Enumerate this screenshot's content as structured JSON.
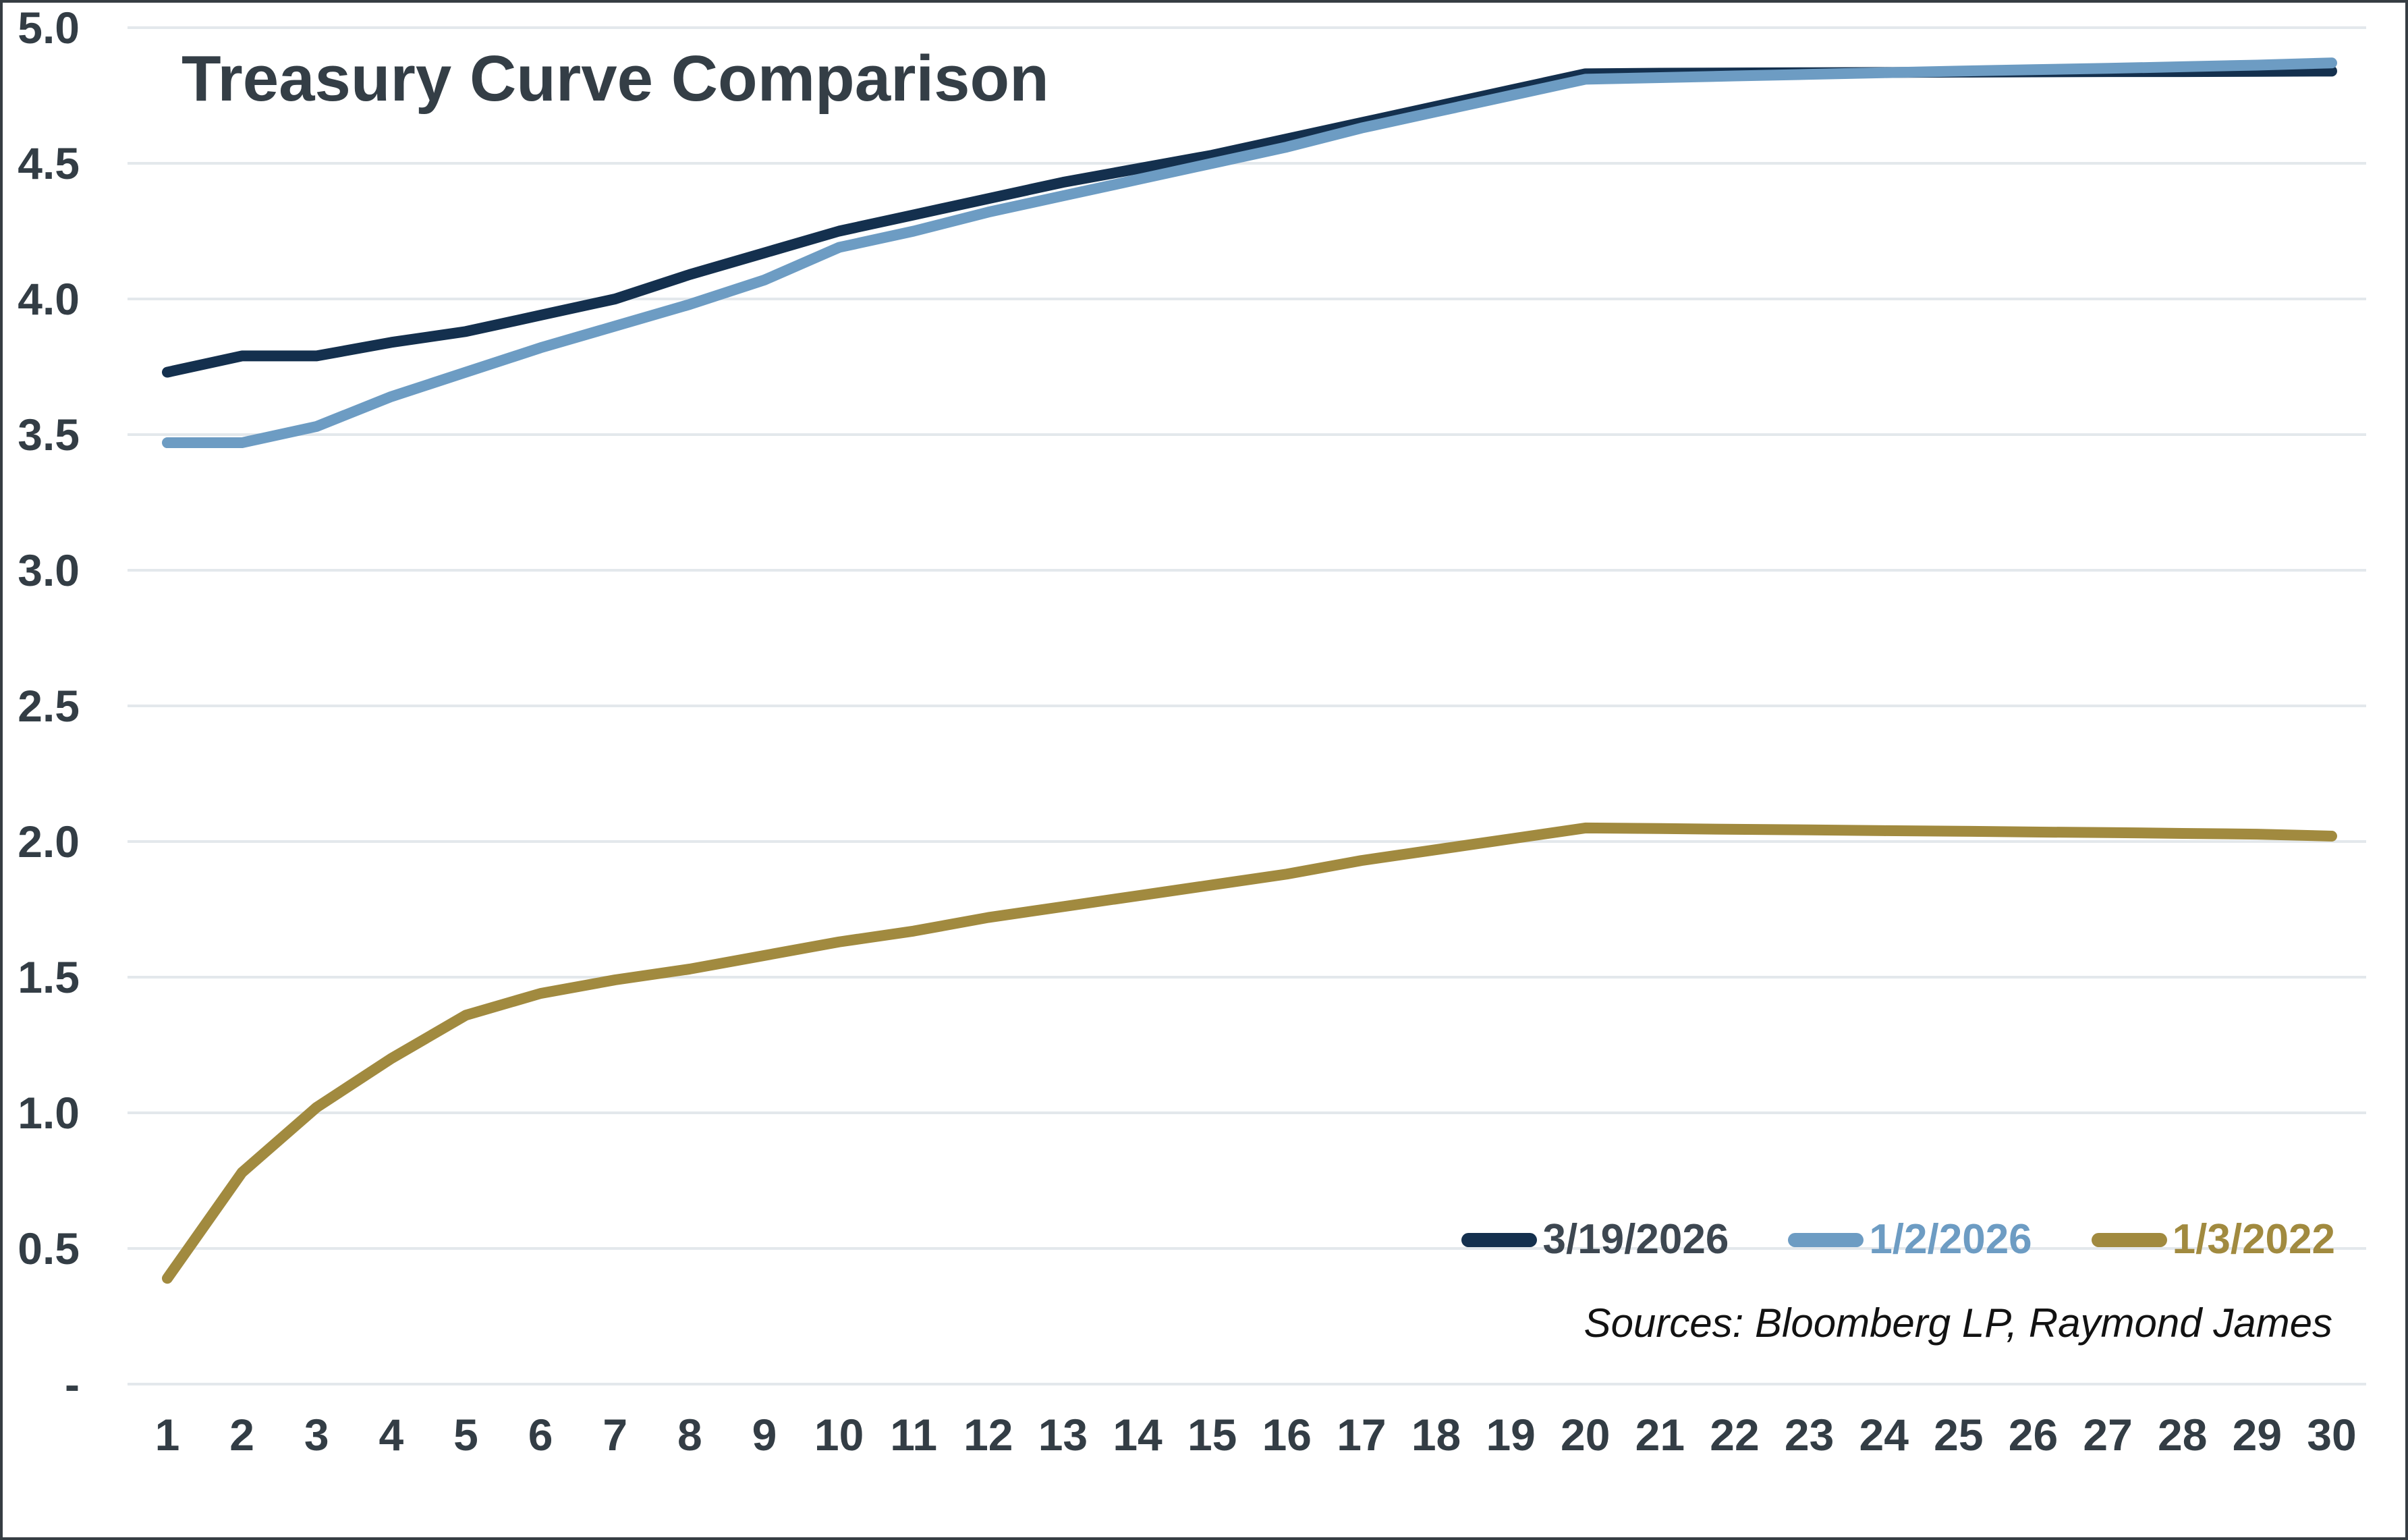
{
  "header": {
    "title": "Treasury Curve Comparison"
  },
  "footer": {
    "sources": "Sources: Bloomberg LP, Raymond James"
  },
  "legend": {
    "position": "bottom-right",
    "items": [
      {
        "label": "3/19/2026",
        "color": "#14304e",
        "label_color": "#3d4751"
      },
      {
        "label": "1/2/2026",
        "color": "#6d9cc3",
        "label_color": "#6d9cc3"
      },
      {
        "label": "1/3/2022",
        "color": "#a18a3f",
        "label_color": "#a18a3f"
      }
    ]
  },
  "colors": {
    "background": "#ffffff",
    "frame_border": "#363d43",
    "gridline": "#e3e8ec",
    "axis_text": "#333d45",
    "title_text": "#343e46",
    "sources_text": "#121212",
    "series_navy": "#14304e",
    "series_blue": "#6d9cc3",
    "series_gold": "#a18a3f"
  },
  "chart_data": {
    "type": "line",
    "title": "Treasury Curve Comparison",
    "xlabel": "",
    "ylabel": "",
    "x": [
      1,
      2,
      3,
      4,
      5,
      6,
      7,
      8,
      9,
      10,
      11,
      12,
      13,
      14,
      15,
      16,
      17,
      18,
      19,
      20,
      21,
      22,
      23,
      24,
      25,
      26,
      27,
      28,
      29,
      30
    ],
    "x_tick_labels": [
      "1",
      "2",
      "3",
      "4",
      "5",
      "6",
      "7",
      "8",
      "9",
      "10",
      "11",
      "12",
      "13",
      "14",
      "15",
      "16",
      "17",
      "18",
      "19",
      "20",
      "21",
      "22",
      "23",
      "24",
      "25",
      "26",
      "27",
      "28",
      "29",
      "30"
    ],
    "y_ticks": [
      {
        "label": "5.0",
        "value": 5.0
      },
      {
        "label": "4.5",
        "value": 4.5
      },
      {
        "label": "4.0",
        "value": 4.0
      },
      {
        "label": "3.5",
        "value": 3.5
      },
      {
        "label": "3.0",
        "value": 3.0
      },
      {
        "label": "2.5",
        "value": 2.5
      },
      {
        "label": "2.0",
        "value": 2.0
      },
      {
        "label": "1.5",
        "value": 1.5
      },
      {
        "label": "1.0",
        "value": 1.0
      },
      {
        "label": "0.5",
        "value": 0.5
      },
      {
        "label": "-",
        "value": 0.0
      }
    ],
    "ylim": [
      0,
      5.0
    ],
    "grid": "on",
    "legend_position": "bottom-right",
    "series": [
      {
        "name": "3/19/2026",
        "color": "#14304e",
        "values": [
          3.73,
          3.79,
          3.79,
          3.84,
          3.88,
          3.94,
          4.0,
          4.09,
          4.17,
          4.25,
          4.31,
          4.37,
          4.43,
          4.48,
          4.53,
          4.59,
          4.65,
          4.71,
          4.77,
          4.83,
          4.832,
          4.833,
          4.834,
          4.835,
          4.836,
          4.837,
          4.838,
          4.838,
          4.839,
          4.84
        ]
      },
      {
        "name": "1/2/2026",
        "color": "#6d9cc3",
        "values": [
          3.47,
          3.47,
          3.53,
          3.64,
          3.73,
          3.82,
          3.9,
          3.98,
          4.07,
          4.19,
          4.25,
          4.32,
          4.38,
          4.44,
          4.5,
          4.56,
          4.63,
          4.69,
          4.75,
          4.81,
          4.816,
          4.822,
          4.828,
          4.834,
          4.84,
          4.845,
          4.85,
          4.856,
          4.862,
          4.87
        ]
      },
      {
        "name": "1/3/2022",
        "color": "#a18a3f",
        "values": [
          0.39,
          0.78,
          1.02,
          1.2,
          1.36,
          1.44,
          1.49,
          1.53,
          1.58,
          1.63,
          1.67,
          1.72,
          1.76,
          1.8,
          1.84,
          1.88,
          1.93,
          1.97,
          2.01,
          2.05,
          2.048,
          2.045,
          2.043,
          2.04,
          2.038,
          2.035,
          2.033,
          2.03,
          2.027,
          2.02
        ]
      }
    ]
  }
}
